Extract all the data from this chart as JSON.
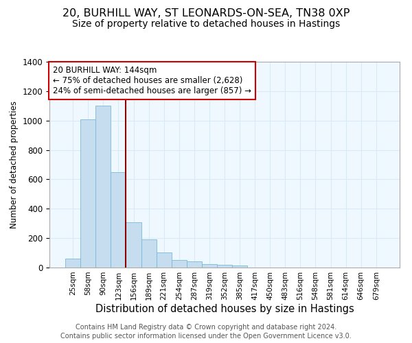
{
  "title1": "20, BURHILL WAY, ST LEONARDS-ON-SEA, TN38 0XP",
  "title2": "Size of property relative to detached houses in Hastings",
  "xlabel": "Distribution of detached houses by size in Hastings",
  "ylabel": "Number of detached properties",
  "categories": [
    "25sqm",
    "58sqm",
    "90sqm",
    "123sqm",
    "156sqm",
    "189sqm",
    "221sqm",
    "254sqm",
    "287sqm",
    "319sqm",
    "352sqm",
    "385sqm",
    "417sqm",
    "450sqm",
    "483sqm",
    "516sqm",
    "548sqm",
    "581sqm",
    "614sqm",
    "646sqm",
    "679sqm"
  ],
  "values": [
    62,
    1010,
    1100,
    650,
    310,
    190,
    105,
    50,
    40,
    25,
    20,
    15,
    0,
    0,
    0,
    0,
    0,
    0,
    0,
    0,
    0
  ],
  "bar_color": "#c5ddef",
  "bar_edge_color": "#7ab8d8",
  "grid_color": "#d8eaf5",
  "property_line_x": 3.5,
  "property_label": "20 BURHILL WAY: 144sqm",
  "annotation_line1": "← 75% of detached houses are smaller (2,628)",
  "annotation_line2": "24% of semi-detached houses are larger (857) →",
  "annotation_box_color": "#ffffff",
  "annotation_box_edge_color": "#cc0000",
  "property_line_color": "#8b0000",
  "footnote1": "Contains HM Land Registry data © Crown copyright and database right 2024.",
  "footnote2": "Contains public sector information licensed under the Open Government Licence v3.0.",
  "ylim": [
    0,
    1400
  ],
  "title1_fontsize": 11.5,
  "title2_fontsize": 10,
  "xlabel_fontsize": 10.5,
  "ylabel_fontsize": 8.5,
  "tick_fontsize": 7.5,
  "footnote_fontsize": 7,
  "annotation_fontsize": 8.5,
  "bg_color": "#f0f8ff"
}
